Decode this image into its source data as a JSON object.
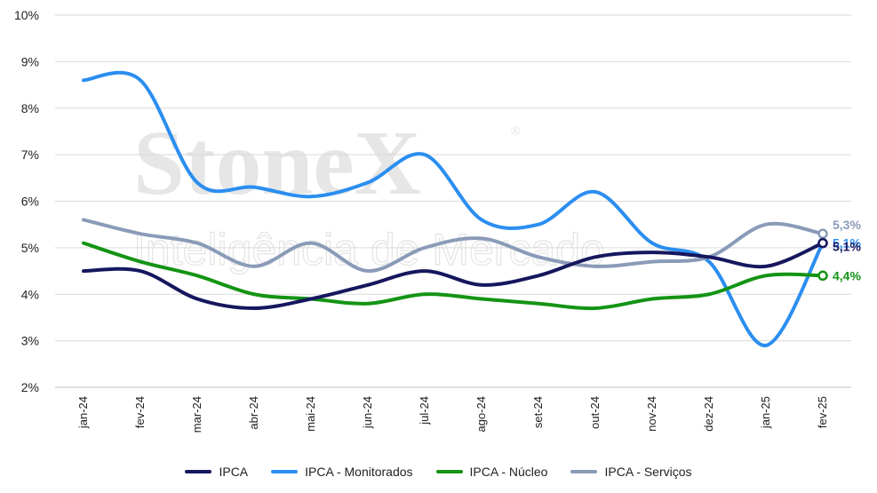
{
  "watermark": {
    "brand": "StoneX",
    "registered": "®",
    "tagline": "Inteligência de Mercado"
  },
  "chart_data": {
    "type": "line",
    "categories": [
      "jan-24",
      "fev-24",
      "mar-24",
      "abr-24",
      "mai-24",
      "jun-24",
      "jul-24",
      "ago-24",
      "set-24",
      "out-24",
      "nov-24",
      "dez-24",
      "jan-25",
      "fev-25"
    ],
    "ylim": [
      2,
      10
    ],
    "yticks": [
      "2%",
      "3%",
      "4%",
      "5%",
      "6%",
      "7%",
      "8%",
      "9%",
      "10%"
    ],
    "grid": true,
    "legend_position": "bottom",
    "series": [
      {
        "name": "IPCA",
        "color": "#15175e",
        "values": [
          4.5,
          4.5,
          3.9,
          3.7,
          3.9,
          4.2,
          4.5,
          4.2,
          4.4,
          4.8,
          4.9,
          4.8,
          4.6,
          5.1
        ],
        "end_label": "5,1%"
      },
      {
        "name": "IPCA - Monitorados",
        "color": "#2b8ef0",
        "values": [
          8.6,
          8.6,
          6.4,
          6.3,
          6.1,
          6.4,
          7.0,
          5.6,
          5.5,
          6.2,
          5.1,
          4.7,
          2.9,
          5.1
        ],
        "end_label": "5,1%"
      },
      {
        "name": "IPCA - Núcleo",
        "color": "#149414",
        "values": [
          5.1,
          4.7,
          4.4,
          4.0,
          3.9,
          3.8,
          4.0,
          3.9,
          3.8,
          3.7,
          3.9,
          4.0,
          4.4,
          4.4
        ],
        "end_label": "4,4%"
      },
      {
        "name": "IPCA - Serviços",
        "color": "#8a9bb8",
        "values": [
          5.6,
          5.3,
          5.1,
          4.6,
          5.1,
          4.5,
          5.0,
          5.2,
          4.8,
          4.6,
          4.7,
          4.8,
          5.5,
          5.3
        ],
        "end_label": "5,3%"
      }
    ]
  }
}
